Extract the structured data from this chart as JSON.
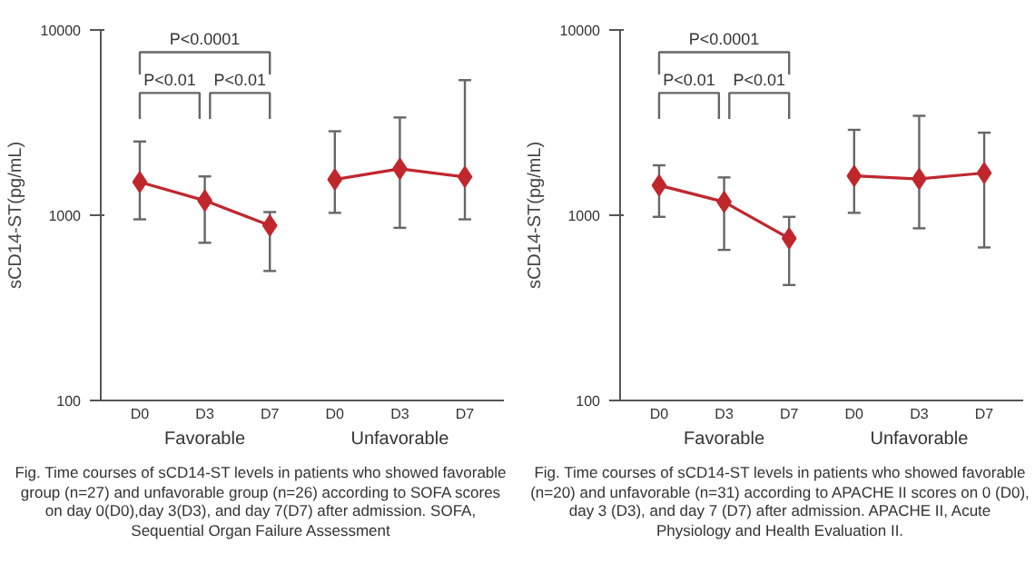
{
  "chart_data": [
    {
      "type": "line",
      "categories": [
        "D0",
        "D3",
        "D7",
        "D0",
        "D3",
        "D7"
      ],
      "ylabel": "sCD14-ST(pg/mL)",
      "log": true,
      "ylim": [
        100,
        10000
      ],
      "yticks": [
        100,
        1000,
        10000
      ],
      "grid": false,
      "marker": "diamond",
      "line_style": "solid",
      "series": [
        {
          "color": "#c0272d",
          "values": [
            1510,
            1200,
            880,
            null,
            null,
            null
          ],
          "errors": [
            [
              950,
              2500
            ],
            [
              710,
              1620
            ],
            [
              500,
              1040
            ],
            null,
            null,
            null
          ]
        },
        {
          "color": "#c0272d",
          "values": [
            null,
            null,
            null,
            1560,
            1780,
            1610
          ],
          "errors": [
            null,
            null,
            null,
            [
              1030,
              2840
            ],
            [
              855,
              3370
            ],
            [
              950,
              5360
            ]
          ]
        }
      ],
      "annotations": [
        "P<0.01",
        "P<0.01",
        "P<0.0001",
        "Favorable",
        "Unfavorable",
        "Fig. Time courses of sCD14-ST levels in patients who showed favorable group (n=27) and unfavorable group (n=26) according to SOFA scores on day 0(D0),day 3(D3), and day 7(D7) after admission. SOFA, Sequential Organ Failure Assessment"
      ]
    },
    {
      "type": "line",
      "categories": [
        "D0",
        "D3",
        "D7",
        "D0",
        "D3",
        "D7"
      ],
      "ylabel": "sCD14-ST(pg/mL)",
      "log": true,
      "ylim": [
        100,
        10000
      ],
      "yticks": [
        100,
        1000,
        10000
      ],
      "grid": false,
      "marker": "diamond",
      "line_style": "solid",
      "series": [
        {
          "color": "#c0272d",
          "values": [
            1450,
            1180,
            750,
            null,
            null,
            null
          ],
          "errors": [
            [
              980,
              1860
            ],
            [
              650,
              1600
            ],
            [
              420,
              980
            ],
            null,
            null,
            null
          ]
        },
        {
          "color": "#c0272d",
          "values": [
            null,
            null,
            null,
            1630,
            1570,
            1690
          ],
          "errors": [
            null,
            null,
            null,
            [
              1030,
              2890
            ],
            [
              850,
              3440
            ],
            [
              670,
              2790
            ]
          ]
        }
      ],
      "annotations": [
        "P<0.01",
        "P<0.01",
        "P<0.0001",
        "Favorable",
        "Unfavorable",
        "Fig. Time courses of sCD14-ST levels in patients who showed favorable (n=20) and unfavorable (n=31) according to APACHE II scores on 0 (D0), day 3 (D3), and day 7 (D7) after admission. APACHE II, Acute Physiology and Health Evaluation II."
      ]
    }
  ]
}
